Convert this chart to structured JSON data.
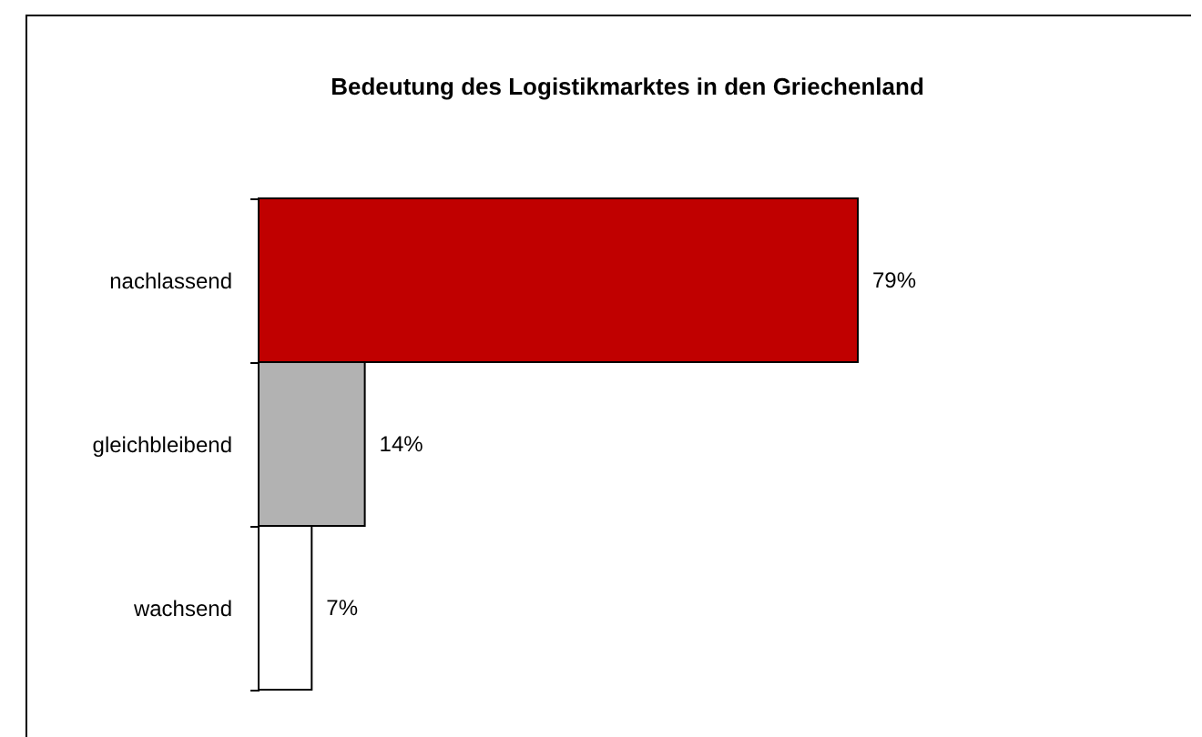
{
  "chart_data": {
    "type": "bar",
    "orientation": "horizontal",
    "title": "Bedeutung des Logistikmarktes in den Griechenland",
    "categories": [
      "nachlassend",
      "gleichbleibend",
      "wachsend"
    ],
    "values": [
      79,
      14,
      7
    ],
    "colors": [
      "#c00000",
      "#b2b2b2",
      "#ffffff"
    ],
    "value_labels": [
      "79%",
      "14%",
      "7%"
    ]
  }
}
